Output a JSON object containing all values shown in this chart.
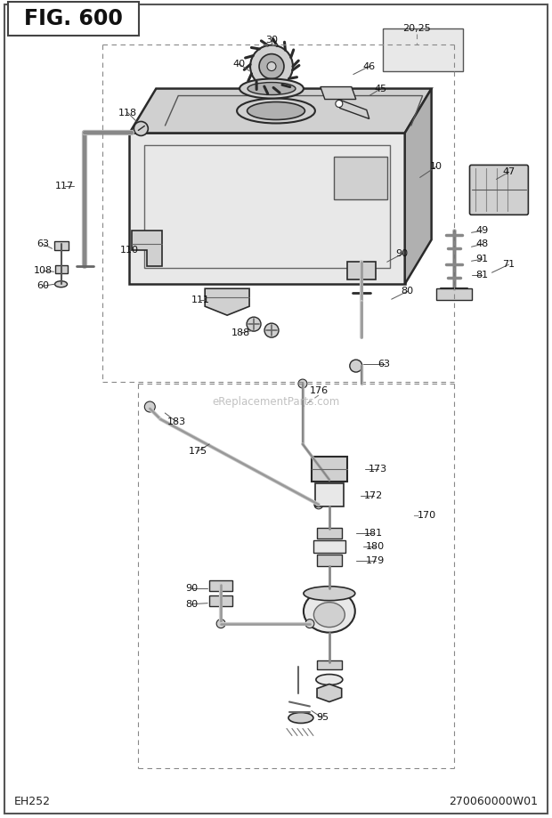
{
  "title": "FIG. 600",
  "bottom_left": "EH252",
  "bottom_right": "270060000W01",
  "bg_color": "#ffffff",
  "border_color": "#444444",
  "fig_width": 6.2,
  "fig_height": 9.19,
  "watermark": "eReplacementParts.com",
  "line_color": "#2a2a2a",
  "light_fill": "#e8e8e8",
  "mid_fill": "#d0d0d0",
  "dark_fill": "#b0b0b0"
}
